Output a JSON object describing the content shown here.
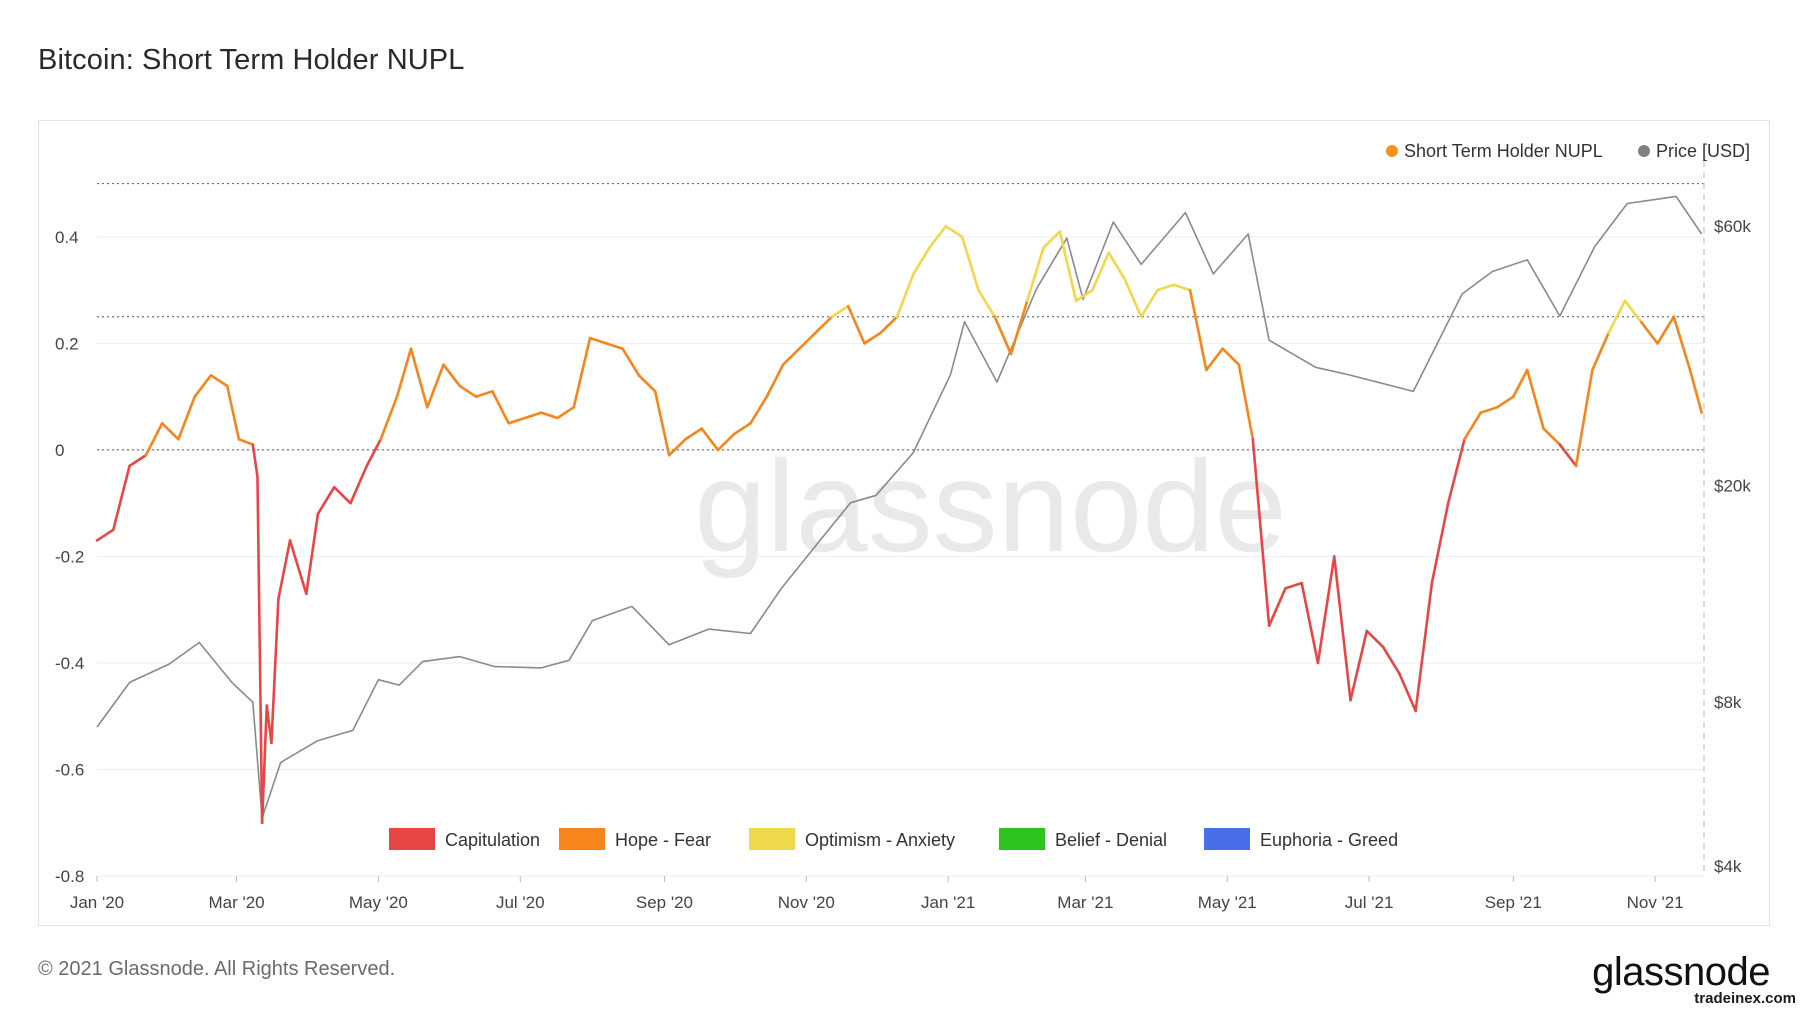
{
  "title": "Bitcoin: Short Term Holder NUPL",
  "footer": "© 2021 Glassnode. All Rights Reserved.",
  "brand": "glassnode",
  "source_tag": "tradeinex.com",
  "watermark": "glassnode",
  "chart_data": {
    "type": "line",
    "title": "Bitcoin: Short Term Holder NUPL",
    "x_labels": [
      "Jan '20",
      "Mar '20",
      "May '20",
      "Jul '20",
      "Sep '20",
      "Nov '20",
      "Jan '21",
      "Mar '21",
      "May '21",
      "Jul '21",
      "Sep '21",
      "Nov '21"
    ],
    "y_left": {
      "ticks": [
        "0.4",
        "0.2",
        "0",
        "-0.2",
        "-0.4",
        "-0.6",
        "-0.8"
      ],
      "values": [
        0.4,
        0.2,
        0,
        -0.2,
        -0.4,
        -0.6,
        -0.8
      ],
      "ylim": [
        -0.8,
        0.58
      ]
    },
    "y_right": {
      "label": "Price [USD]",
      "ticks": [
        "$60k",
        "$20k",
        "$8k",
        "$4k"
      ],
      "values": [
        60000,
        20000,
        8000,
        4000
      ],
      "scale": "log"
    },
    "reference_lines": [
      0.5,
      0.25,
      0
    ],
    "series_legend": [
      {
        "name": "Short Term Holder NUPL",
        "color": "#f7931a"
      },
      {
        "name": "Price [USD]",
        "color": "#808080"
      }
    ],
    "zones": [
      {
        "name": "Capitulation",
        "color": "#e84545",
        "range": [
          -1,
          0
        ]
      },
      {
        "name": "Hope - Fear",
        "color": "#f7851c",
        "range": [
          0,
          0.25
        ]
      },
      {
        "name": "Optimism - Anxiety",
        "color": "#f0d84a",
        "range": [
          0.25,
          0.5
        ]
      },
      {
        "name": "Belief - Denial",
        "color": "#2ec41f",
        "range": [
          0.5,
          0.75
        ]
      },
      {
        "name": "Euphoria - Greed",
        "color": "#4a6de8",
        "range": [
          0.75,
          1
        ]
      }
    ],
    "nupl_series": [
      [
        "2020-01-01",
        -0.17
      ],
      [
        "2020-01-08",
        -0.15
      ],
      [
        "2020-01-15",
        -0.03
      ],
      [
        "2020-01-22",
        -0.01
      ],
      [
        "2020-01-29",
        0.05
      ],
      [
        "2020-02-05",
        0.02
      ],
      [
        "2020-02-12",
        0.1
      ],
      [
        "2020-02-19",
        0.14
      ],
      [
        "2020-02-26",
        0.12
      ],
      [
        "2020-03-02",
        0.02
      ],
      [
        "2020-03-08",
        0.01
      ],
      [
        "2020-03-10",
        -0.05
      ],
      [
        "2020-03-12",
        -0.7
      ],
      [
        "2020-03-14",
        -0.48
      ],
      [
        "2020-03-16",
        -0.55
      ],
      [
        "2020-03-19",
        -0.28
      ],
      [
        "2020-03-24",
        -0.17
      ],
      [
        "2020-03-31",
        -0.27
      ],
      [
        "2020-04-05",
        -0.12
      ],
      [
        "2020-04-12",
        -0.07
      ],
      [
        "2020-04-19",
        -0.1
      ],
      [
        "2020-04-26",
        -0.03
      ],
      [
        "2020-05-02",
        0.02
      ],
      [
        "2020-05-09",
        0.1
      ],
      [
        "2020-05-15",
        0.19
      ],
      [
        "2020-05-22",
        0.08
      ],
      [
        "2020-05-29",
        0.16
      ],
      [
        "2020-06-05",
        0.12
      ],
      [
        "2020-06-12",
        0.1
      ],
      [
        "2020-06-19",
        0.11
      ],
      [
        "2020-06-26",
        0.05
      ],
      [
        "2020-07-03",
        0.06
      ],
      [
        "2020-07-10",
        0.07
      ],
      [
        "2020-07-17",
        0.06
      ],
      [
        "2020-07-24",
        0.08
      ],
      [
        "2020-07-31",
        0.21
      ],
      [
        "2020-08-07",
        0.2
      ],
      [
        "2020-08-14",
        0.19
      ],
      [
        "2020-08-21",
        0.14
      ],
      [
        "2020-08-28",
        0.11
      ],
      [
        "2020-09-03",
        -0.01
      ],
      [
        "2020-09-10",
        0.02
      ],
      [
        "2020-09-17",
        0.04
      ],
      [
        "2020-09-24",
        0.0
      ],
      [
        "2020-10-01",
        0.03
      ],
      [
        "2020-10-08",
        0.05
      ],
      [
        "2020-10-15",
        0.1
      ],
      [
        "2020-10-22",
        0.16
      ],
      [
        "2020-10-29",
        0.19
      ],
      [
        "2020-11-05",
        0.22
      ],
      [
        "2020-11-12",
        0.25
      ],
      [
        "2020-11-19",
        0.27
      ],
      [
        "2020-11-26",
        0.2
      ],
      [
        "2020-12-03",
        0.22
      ],
      [
        "2020-12-10",
        0.25
      ],
      [
        "2020-12-17",
        0.33
      ],
      [
        "2020-12-24",
        0.38
      ],
      [
        "2020-12-31",
        0.42
      ],
      [
        "2021-01-07",
        0.4
      ],
      [
        "2021-01-14",
        0.3
      ],
      [
        "2021-01-21",
        0.25
      ],
      [
        "2021-01-28",
        0.18
      ],
      [
        "2021-02-04",
        0.28
      ],
      [
        "2021-02-11",
        0.38
      ],
      [
        "2021-02-18",
        0.41
      ],
      [
        "2021-02-25",
        0.28
      ],
      [
        "2021-03-04",
        0.3
      ],
      [
        "2021-03-11",
        0.37
      ],
      [
        "2021-03-18",
        0.32
      ],
      [
        "2021-03-25",
        0.25
      ],
      [
        "2021-04-01",
        0.3
      ],
      [
        "2021-04-08",
        0.31
      ],
      [
        "2021-04-15",
        0.3
      ],
      [
        "2021-04-22",
        0.15
      ],
      [
        "2021-04-29",
        0.19
      ],
      [
        "2021-05-06",
        0.16
      ],
      [
        "2021-05-12",
        0.02
      ],
      [
        "2021-05-19",
        -0.33
      ],
      [
        "2021-05-26",
        -0.26
      ],
      [
        "2021-06-02",
        -0.25
      ],
      [
        "2021-06-09",
        -0.4
      ],
      [
        "2021-06-16",
        -0.2
      ],
      [
        "2021-06-23",
        -0.47
      ],
      [
        "2021-06-30",
        -0.34
      ],
      [
        "2021-07-07",
        -0.37
      ],
      [
        "2021-07-14",
        -0.42
      ],
      [
        "2021-07-21",
        -0.49
      ],
      [
        "2021-07-28",
        -0.25
      ],
      [
        "2021-08-04",
        -0.1
      ],
      [
        "2021-08-11",
        0.02
      ],
      [
        "2021-08-18",
        0.07
      ],
      [
        "2021-08-25",
        0.08
      ],
      [
        "2021-09-01",
        0.1
      ],
      [
        "2021-09-07",
        0.15
      ],
      [
        "2021-09-14",
        0.04
      ],
      [
        "2021-09-21",
        0.01
      ],
      [
        "2021-09-28",
        -0.03
      ],
      [
        "2021-10-05",
        0.15
      ],
      [
        "2021-10-12",
        0.22
      ],
      [
        "2021-10-19",
        0.28
      ],
      [
        "2021-10-26",
        0.24
      ],
      [
        "2021-11-02",
        0.2
      ],
      [
        "2021-11-09",
        0.25
      ],
      [
        "2021-11-16",
        0.15
      ],
      [
        "2021-11-21",
        0.07
      ]
    ],
    "price_series": [
      [
        "2020-01-01",
        7200
      ],
      [
        "2020-01-15",
        8700
      ],
      [
        "2020-02-01",
        9400
      ],
      [
        "2020-02-14",
        10300
      ],
      [
        "2020-02-28",
        8700
      ],
      [
        "2020-03-08",
        8000
      ],
      [
        "2020-03-12",
        4900
      ],
      [
        "2020-03-20",
        6200
      ],
      [
        "2020-04-05",
        6800
      ],
      [
        "2020-04-20",
        7100
      ],
      [
        "2020-05-01",
        8800
      ],
      [
        "2020-05-10",
        8600
      ],
      [
        "2020-05-20",
        9500
      ],
      [
        "2020-06-05",
        9700
      ],
      [
        "2020-06-20",
        9300
      ],
      [
        "2020-07-10",
        9250
      ],
      [
        "2020-07-22",
        9550
      ],
      [
        "2020-08-01",
        11300
      ],
      [
        "2020-08-18",
        12000
      ],
      [
        "2020-09-03",
        10200
      ],
      [
        "2020-09-20",
        10900
      ],
      [
        "2020-10-08",
        10700
      ],
      [
        "2020-10-21",
        12900
      ],
      [
        "2020-11-05",
        15500
      ],
      [
        "2020-11-20",
        18600
      ],
      [
        "2020-12-01",
        19200
      ],
      [
        "2020-12-17",
        23000
      ],
      [
        "2021-01-02",
        32000
      ],
      [
        "2021-01-08",
        40000
      ],
      [
        "2021-01-22",
        31000
      ],
      [
        "2021-02-08",
        46000
      ],
      [
        "2021-02-21",
        57000
      ],
      [
        "2021-02-28",
        44000
      ],
      [
        "2021-03-13",
        61000
      ],
      [
        "2021-03-25",
        51000
      ],
      [
        "2021-04-13",
        63500
      ],
      [
        "2021-04-25",
        49000
      ],
      [
        "2021-05-10",
        58000
      ],
      [
        "2021-05-19",
        37000
      ],
      [
        "2021-06-08",
        33000
      ],
      [
        "2021-06-22",
        32000
      ],
      [
        "2021-07-20",
        29800
      ],
      [
        "2021-08-10",
        45000
      ],
      [
        "2021-08-23",
        49500
      ],
      [
        "2021-09-07",
        52000
      ],
      [
        "2021-09-21",
        41000
      ],
      [
        "2021-10-06",
        55000
      ],
      [
        "2021-10-20",
        66000
      ],
      [
        "2021-11-10",
        68000
      ],
      [
        "2021-11-21",
        58000
      ]
    ]
  }
}
